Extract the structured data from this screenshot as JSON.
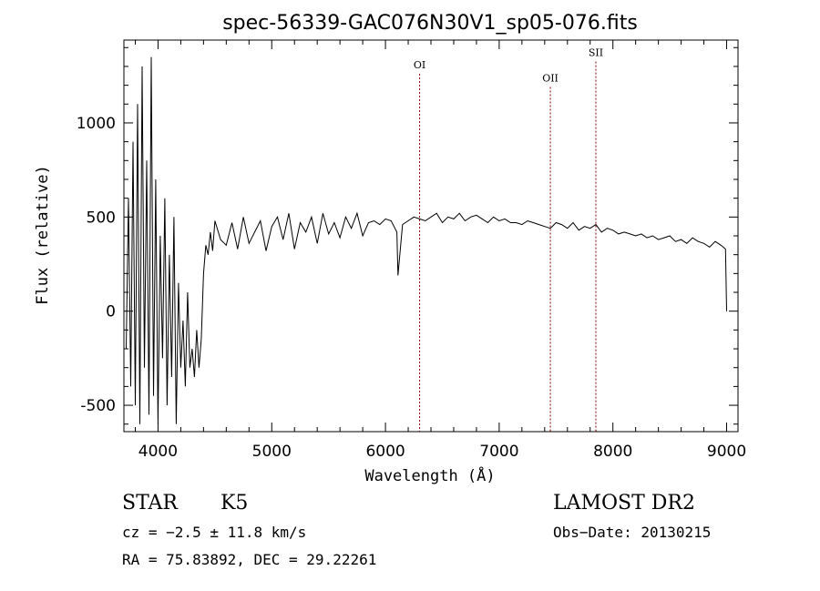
{
  "chart_data": {
    "type": "line",
    "title": "spec-56339-GAC076N30V1_sp05-076.fits",
    "xlabel": "Wavelength (Å)",
    "ylabel": "Flux (relative)",
    "xlim": [
      3700,
      9100
    ],
    "ylim": [
      -640,
      1440
    ],
    "x_ticks": [
      4000,
      5000,
      6000,
      7000,
      8000,
      9000
    ],
    "y_ticks": [
      -500,
      0,
      500,
      1000
    ],
    "grid": false,
    "line_color": "#000000",
    "marker_color": "#8b0000",
    "lines": [
      {
        "label": "OI",
        "x": 6300,
        "label_y": 1290
      },
      {
        "label": "OII",
        "x": 7450,
        "label_y": 1220
      },
      {
        "label": "SII",
        "x": 7850,
        "label_y": 1355
      }
    ],
    "series": [
      {
        "x": [
          3720,
          3740,
          3760,
          3780,
          3800,
          3820,
          3840,
          3860,
          3880,
          3900,
          3920,
          3940,
          3960,
          3980,
          4000,
          4020,
          4040,
          4060,
          4080,
          4100,
          4120,
          4140,
          4160,
          4180,
          4200,
          4220,
          4240,
          4260,
          4280,
          4300,
          4320,
          4340,
          4360,
          4380,
          4400,
          4420,
          4440,
          4460,
          4480,
          4500,
          4550,
          4600,
          4650,
          4700,
          4750,
          4800,
          4850,
          4900,
          4950,
          5000,
          5050,
          5100,
          5150,
          5200,
          5250,
          5300,
          5350,
          5400,
          5450,
          5500,
          5550,
          5600,
          5650,
          5700,
          5750,
          5800,
          5850,
          5900,
          5950,
          6000,
          6050,
          6100,
          6110,
          6150,
          6200,
          6250,
          6300,
          6350,
          6400,
          6450,
          6500,
          6550,
          6600,
          6650,
          6700,
          6750,
          6800,
          6850,
          6900,
          6950,
          7000,
          7050,
          7100,
          7150,
          7200,
          7250,
          7300,
          7350,
          7400,
          7450,
          7500,
          7550,
          7600,
          7650,
          7700,
          7750,
          7800,
          7850,
          7900,
          7950,
          8000,
          8050,
          8100,
          8150,
          8200,
          8250,
          8300,
          8350,
          8400,
          8450,
          8500,
          8550,
          8600,
          8650,
          8700,
          8750,
          8800,
          8850,
          8900,
          8950,
          8990,
          9000
        ],
        "y": [
          -200,
          600,
          -400,
          900,
          -500,
          1100,
          -600,
          1300,
          -300,
          800,
          -550,
          1350,
          -450,
          700,
          -600,
          400,
          -250,
          600,
          -500,
          300,
          -350,
          500,
          -600,
          150,
          -300,
          -50,
          -400,
          100,
          -300,
          -200,
          -350,
          -100,
          -300,
          -150,
          200,
          350,
          300,
          420,
          320,
          480,
          380,
          350,
          470,
          330,
          500,
          360,
          420,
          480,
          320,
          450,
          500,
          380,
          520,
          330,
          470,
          420,
          500,
          360,
          520,
          410,
          470,
          390,
          500,
          440,
          520,
          400,
          470,
          480,
          460,
          490,
          480,
          420,
          190,
          460,
          480,
          500,
          490,
          480,
          500,
          520,
          470,
          500,
          490,
          520,
          480,
          500,
          510,
          490,
          470,
          500,
          480,
          490,
          470,
          470,
          460,
          480,
          470,
          460,
          450,
          440,
          470,
          460,
          440,
          470,
          430,
          450,
          440,
          460,
          420,
          440,
          430,
          410,
          420,
          410,
          400,
          410,
          390,
          400,
          380,
          390,
          400,
          370,
          380,
          360,
          390,
          370,
          360,
          340,
          370,
          350,
          330,
          0
        ]
      }
    ]
  },
  "footer": {
    "object_class": "STAR",
    "subclass": "K5",
    "cz": "cz = −2.5 ± 11.8 km/s",
    "coords": "RA =  75.83892, DEC =  29.22261",
    "survey": "LAMOST DR2",
    "obs_date": "Obs−Date: 20130215"
  }
}
